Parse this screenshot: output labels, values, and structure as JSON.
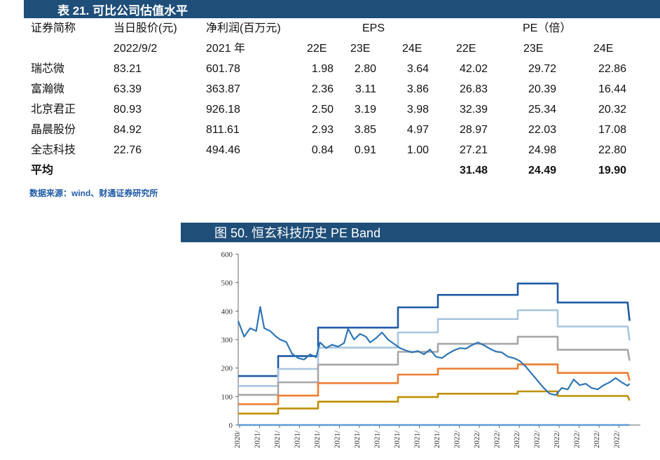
{
  "table": {
    "title": "表 21. 可比公司估值水平",
    "headers": {
      "code": "证券简称",
      "price": "当日股价(元)",
      "profit": "净利润(百万元)",
      "eps": "EPS",
      "pe": "PE（倍）",
      "date": "2022/9/2",
      "year": "2021 年",
      "eps_years": [
        "22E",
        "23E",
        "24E"
      ],
      "pe_years": [
        "22E",
        "23E",
        "24E"
      ]
    },
    "rows": [
      {
        "name": "瑞芯微",
        "price": "83.21",
        "profit": "601.78",
        "eps": [
          "1.98",
          "2.80",
          "3.64"
        ],
        "pe": [
          "42.02",
          "29.72",
          "22.86"
        ]
      },
      {
        "name": "富瀚微",
        "price": "63.39",
        "profit": "363.87",
        "eps": [
          "2.36",
          "3.11",
          "3.86"
        ],
        "pe": [
          "26.83",
          "20.39",
          "16.44"
        ]
      },
      {
        "name": "北京君正",
        "price": "80.93",
        "profit": "926.18",
        "eps": [
          "2.50",
          "3.19",
          "3.98"
        ],
        "pe": [
          "32.39",
          "25.34",
          "20.32"
        ]
      },
      {
        "name": "晶晨股份",
        "price": "84.92",
        "profit": "811.61",
        "eps": [
          "2.93",
          "3.85",
          "4.97"
        ],
        "pe": [
          "28.97",
          "22.03",
          "17.08"
        ]
      },
      {
        "name": "全志科技",
        "price": "22.76",
        "profit": "494.46",
        "eps": [
          "0.84",
          "0.91",
          "1.00"
        ],
        "pe": [
          "27.21",
          "24.98",
          "22.80"
        ]
      }
    ],
    "average": {
      "label": "平均",
      "pe": [
        "31.48",
        "24.49",
        "19.90"
      ]
    },
    "source": "数据来源：wind、财通证券研究所"
  },
  "chart_title": "图 50. 恒玄科技历史 PE Band",
  "chart_data": {
    "type": "line",
    "ylim": [
      0,
      600
    ],
    "yticks": [
      0,
      100,
      200,
      300,
      400,
      500,
      600
    ],
    "xlim": [
      0,
      20
    ],
    "xtick_labels": [
      "2020/",
      "2021/",
      "2021/",
      "2021/",
      "2021/",
      "2021/",
      "2021/",
      "2021/",
      "2021/",
      "2021/",
      "2021/",
      "2022/",
      "2022/",
      "2022/",
      "2022/",
      "2022/",
      "2022/",
      "2022/",
      "2022/",
      "2022/"
    ],
    "series": [
      {
        "color": "#1f5aa6",
        "points": [
          [
            0,
            172
          ],
          [
            2,
            172
          ],
          [
            2,
            242
          ],
          [
            4,
            242
          ],
          [
            4,
            342
          ],
          [
            8,
            342
          ],
          [
            8,
            413
          ],
          [
            10,
            413
          ],
          [
            10,
            457
          ],
          [
            14,
            457
          ],
          [
            14,
            497
          ],
          [
            16,
            497
          ],
          [
            16,
            430
          ],
          [
            19.5,
            430
          ],
          [
            19.6,
            366
          ]
        ]
      },
      {
        "color": "#a9c6e0",
        "points": [
          [
            0,
            137
          ],
          [
            2,
            137
          ],
          [
            2,
            197
          ],
          [
            4,
            197
          ],
          [
            4,
            272
          ],
          [
            8,
            272
          ],
          [
            8,
            325
          ],
          [
            10,
            325
          ],
          [
            10,
            372
          ],
          [
            14,
            372
          ],
          [
            14,
            403
          ],
          [
            16,
            403
          ],
          [
            16,
            346
          ],
          [
            19.5,
            346
          ],
          [
            19.6,
            297
          ]
        ]
      },
      {
        "color": "#a6a6a6",
        "points": [
          [
            0,
            106
          ],
          [
            2,
            106
          ],
          [
            2,
            150
          ],
          [
            4,
            150
          ],
          [
            4,
            212
          ],
          [
            8,
            212
          ],
          [
            8,
            257
          ],
          [
            10,
            257
          ],
          [
            10,
            285
          ],
          [
            14,
            285
          ],
          [
            14,
            310
          ],
          [
            16,
            310
          ],
          [
            16,
            264
          ],
          [
            19.5,
            264
          ],
          [
            19.6,
            226
          ]
        ]
      },
      {
        "color": "#ed7d31",
        "points": [
          [
            0,
            73
          ],
          [
            2,
            73
          ],
          [
            2,
            103
          ],
          [
            4,
            103
          ],
          [
            4,
            147
          ],
          [
            8,
            147
          ],
          [
            8,
            177
          ],
          [
            10,
            177
          ],
          [
            10,
            198
          ],
          [
            14,
            198
          ],
          [
            14,
            213
          ],
          [
            16,
            213
          ],
          [
            16,
            183
          ],
          [
            19.5,
            183
          ],
          [
            19.6,
            156
          ]
        ]
      },
      {
        "color": "#bf9000",
        "points": [
          [
            0,
            40
          ],
          [
            2,
            40
          ],
          [
            2,
            58
          ],
          [
            4,
            58
          ],
          [
            4,
            82
          ],
          [
            8,
            82
          ],
          [
            8,
            98
          ],
          [
            10,
            98
          ],
          [
            10,
            110
          ],
          [
            14,
            110
          ],
          [
            14,
            118
          ],
          [
            16,
            118
          ],
          [
            16,
            102
          ],
          [
            19.5,
            102
          ],
          [
            19.6,
            86
          ]
        ]
      },
      {
        "color": "#5b9bd5",
        "points": [
          [
            0,
            0
          ],
          [
            19.6,
            0
          ]
        ]
      },
      {
        "color": "#2e75b6",
        "points": [
          [
            0,
            365
          ],
          [
            0.3,
            310
          ],
          [
            0.6,
            340
          ],
          [
            0.9,
            330
          ],
          [
            1.1,
            415
          ],
          [
            1.3,
            340
          ],
          [
            1.6,
            330
          ],
          [
            1.9,
            310
          ],
          [
            2.1,
            300
          ],
          [
            2.4,
            292
          ],
          [
            2.7,
            250
          ],
          [
            3,
            235
          ],
          [
            3.3,
            230
          ],
          [
            3.6,
            248
          ],
          [
            3.9,
            238
          ],
          [
            4.1,
            290
          ],
          [
            4.4,
            270
          ],
          [
            4.7,
            282
          ],
          [
            5,
            275
          ],
          [
            5.3,
            288
          ],
          [
            5.5,
            338
          ],
          [
            5.8,
            300
          ],
          [
            6.1,
            320
          ],
          [
            6.4,
            310
          ],
          [
            6.6,
            290
          ],
          [
            6.9,
            305
          ],
          [
            7.2,
            325
          ],
          [
            7.5,
            300
          ],
          [
            7.8,
            285
          ],
          [
            8.1,
            270
          ],
          [
            8.4,
            262
          ],
          [
            8.7,
            255
          ],
          [
            9,
            260
          ],
          [
            9.3,
            248
          ],
          [
            9.6,
            265
          ],
          [
            9.9,
            240
          ],
          [
            10.2,
            235
          ],
          [
            10.5,
            250
          ],
          [
            10.8,
            262
          ],
          [
            11.1,
            270
          ],
          [
            11.4,
            268
          ],
          [
            11.7,
            280
          ],
          [
            12,
            290
          ],
          [
            12.3,
            280
          ],
          [
            12.6,
            268
          ],
          [
            12.9,
            258
          ],
          [
            13.2,
            255
          ],
          [
            13.5,
            240
          ],
          [
            13.8,
            235
          ],
          [
            14.1,
            225
          ],
          [
            14.4,
            205
          ],
          [
            14.7,
            180
          ],
          [
            15,
            155
          ],
          [
            15.3,
            130
          ],
          [
            15.6,
            110
          ],
          [
            15.9,
            105
          ],
          [
            16.2,
            130
          ],
          [
            16.5,
            125
          ],
          [
            16.8,
            160
          ],
          [
            17.1,
            140
          ],
          [
            17.4,
            145
          ],
          [
            17.7,
            130
          ],
          [
            18,
            125
          ],
          [
            18.3,
            140
          ],
          [
            18.6,
            150
          ],
          [
            18.9,
            165
          ],
          [
            19.2,
            150
          ],
          [
            19.5,
            138
          ],
          [
            19.6,
            145
          ]
        ]
      }
    ]
  }
}
